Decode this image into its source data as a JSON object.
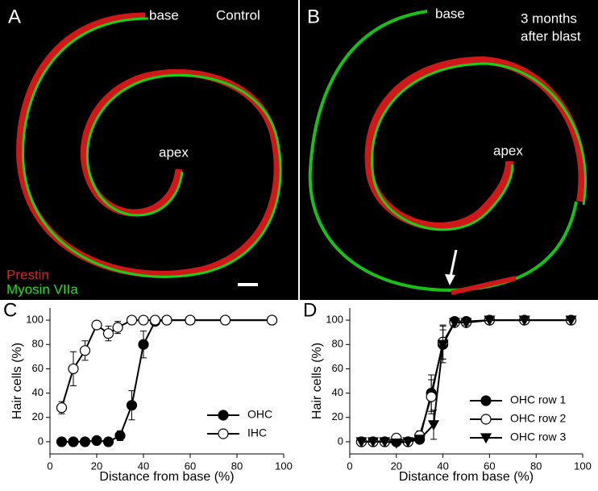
{
  "panels": [
    {
      "letter": "A",
      "labels": [
        "base",
        "Control",
        "apex"
      ],
      "legend": [
        "Prestin",
        "Myosin VIIa"
      ]
    },
    {
      "letter": "B",
      "labels": [
        "base",
        "3 months",
        "after blast",
        "apex"
      ]
    }
  ],
  "chart_data": [
    {
      "type": "scatter",
      "letter": "C",
      "xlabel": "Distance from base (%)",
      "ylabel": "Hair cells (%)",
      "xlim": [
        0,
        100
      ],
      "ylim": [
        -10,
        110
      ],
      "xticks": [
        0,
        20,
        40,
        60,
        80,
        100
      ],
      "yticks": [
        0,
        20,
        40,
        60,
        80,
        100
      ],
      "legend": "lower right",
      "series": [
        {
          "name": "OHC",
          "color": "#000000",
          "fill": "#000000",
          "marker": "circle",
          "x": [
            5,
            10,
            15,
            20,
            25,
            30,
            35,
            40,
            45,
            50,
            60,
            75,
            95
          ],
          "values": [
            0,
            0,
            0,
            1,
            0,
            5,
            30,
            80,
            99,
            100,
            100,
            100,
            100
          ],
          "errors": [
            0,
            0,
            0,
            1,
            0,
            4,
            12,
            11,
            1,
            0,
            0,
            0,
            0
          ]
        },
        {
          "name": "IHC",
          "color": "#000000",
          "fill": "#ffffff",
          "marker": "circle",
          "x": [
            5,
            10,
            15,
            20,
            25,
            29,
            35,
            40,
            45,
            50,
            60,
            75,
            95
          ],
          "values": [
            28,
            60,
            75,
            96,
            89,
            94,
            100,
            100,
            100,
            100,
            100,
            100,
            100
          ],
          "errors": [
            5,
            14,
            8,
            3,
            6,
            5,
            0,
            0,
            0,
            0,
            0,
            0,
            0
          ]
        }
      ]
    },
    {
      "type": "scatter",
      "letter": "D",
      "xlabel": "Distance from base (%)",
      "ylabel": "Hair cells (%)",
      "xlim": [
        0,
        100
      ],
      "ylim": [
        -10,
        110
      ],
      "xticks": [
        0,
        20,
        40,
        60,
        80,
        100
      ],
      "yticks": [
        0,
        20,
        40,
        60,
        80,
        100
      ],
      "legend": "center right",
      "series": [
        {
          "name": "OHC row 1",
          "color": "#000000",
          "fill": "#000000",
          "marker": "circle",
          "x": [
            5,
            10,
            15,
            20,
            25,
            30,
            35,
            40,
            45,
            50,
            60,
            75,
            95
          ],
          "values": [
            0,
            0,
            0,
            0,
            0,
            2,
            40,
            80,
            99,
            99,
            100,
            100,
            100
          ],
          "errors": [
            0,
            0,
            0,
            0,
            0,
            2,
            15,
            12,
            2,
            1,
            0,
            0,
            0
          ]
        },
        {
          "name": "OHC row 2",
          "color": "#000000",
          "fill": "#ffffff",
          "marker": "circle",
          "x": [
            5,
            10,
            15,
            20,
            25,
            30,
            35,
            40,
            45,
            50,
            60,
            75,
            95
          ],
          "values": [
            0,
            0,
            0,
            3,
            0,
            5,
            37,
            82,
            98,
            98,
            100,
            100,
            100
          ],
          "errors": [
            0,
            0,
            0,
            3,
            0,
            4,
            14,
            14,
            2,
            2,
            0,
            0,
            0
          ]
        },
        {
          "name": "OHC row 3",
          "color": "#000000",
          "fill": "#000000",
          "marker": "triangle",
          "x": [
            5,
            10,
            15,
            20,
            25,
            30,
            36,
            40,
            45,
            50,
            60,
            75,
            95
          ],
          "values": [
            0,
            0,
            0,
            -1,
            0,
            2,
            14,
            80,
            98,
            98,
            100,
            100,
            100
          ],
          "errors": [
            0,
            0,
            0,
            1,
            0,
            2,
            12,
            15,
            2,
            2,
            0,
            0,
            0
          ]
        }
      ]
    }
  ]
}
